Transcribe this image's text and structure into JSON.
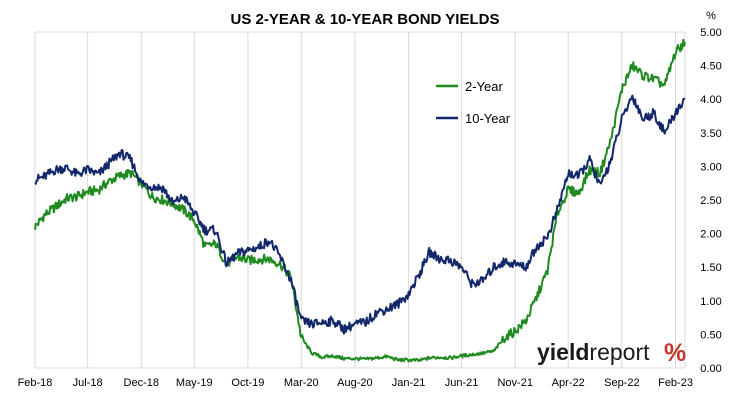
{
  "chart_data": {
    "type": "line",
    "title": "US 2-YEAR & 10-YEAR BOND YIELDS",
    "y_unit": "%",
    "ylim": [
      0,
      5
    ],
    "y_ticks": [
      "0.00",
      "0.50",
      "1.00",
      "1.50",
      "2.00",
      "2.50",
      "3.00",
      "3.50",
      "4.00",
      "4.50",
      "5.00"
    ],
    "y_tick_values": [
      0,
      0.5,
      1,
      1.5,
      2,
      2.5,
      3,
      3.5,
      4,
      4.5,
      5
    ],
    "x_range": [
      "2018-02-01",
      "2023-02-28"
    ],
    "x_ticks": [
      {
        "label": "Feb-18",
        "date": "2018-02-01"
      },
      {
        "label": "Jul-18",
        "date": "2018-07-01"
      },
      {
        "label": "Dec-18",
        "date": "2018-12-01"
      },
      {
        "label": "May-19",
        "date": "2019-05-01"
      },
      {
        "label": "Oct-19",
        "date": "2019-10-01"
      },
      {
        "label": "Mar-20",
        "date": "2020-03-01"
      },
      {
        "label": "Aug-20",
        "date": "2020-08-01"
      },
      {
        "label": "Jan-21",
        "date": "2021-01-01"
      },
      {
        "label": "Jun-21",
        "date": "2021-06-01"
      },
      {
        "label": "Nov-21",
        "date": "2021-11-01"
      },
      {
        "label": "Apr-22",
        "date": "2022-04-01"
      },
      {
        "label": "Sep-22",
        "date": "2022-09-01"
      },
      {
        "label": "Feb-23",
        "date": "2023-02-01"
      }
    ],
    "grid": "vertical",
    "legend": "upper-right inside plot",
    "series": [
      {
        "name": "2-Year",
        "color": "#1f8a1f",
        "points": [
          [
            "2018-02-01",
            2.1
          ],
          [
            "2018-03-01",
            2.28
          ],
          [
            "2018-04-01",
            2.4
          ],
          [
            "2018-05-01",
            2.52
          ],
          [
            "2018-06-01",
            2.55
          ],
          [
            "2018-07-01",
            2.62
          ],
          [
            "2018-08-01",
            2.65
          ],
          [
            "2018-09-01",
            2.78
          ],
          [
            "2018-10-01",
            2.86
          ],
          [
            "2018-11-01",
            2.9
          ],
          [
            "2018-12-01",
            2.75
          ],
          [
            "2019-01-01",
            2.55
          ],
          [
            "2019-02-01",
            2.5
          ],
          [
            "2019-03-01",
            2.45
          ],
          [
            "2019-04-01",
            2.35
          ],
          [
            "2019-05-01",
            2.2
          ],
          [
            "2019-06-01",
            1.8
          ],
          [
            "2019-07-01",
            1.85
          ],
          [
            "2019-08-01",
            1.55
          ],
          [
            "2019-09-01",
            1.65
          ],
          [
            "2019-10-01",
            1.6
          ],
          [
            "2019-11-01",
            1.62
          ],
          [
            "2019-12-01",
            1.62
          ],
          [
            "2020-01-01",
            1.55
          ],
          [
            "2020-02-01",
            1.35
          ],
          [
            "2020-03-01",
            0.45
          ],
          [
            "2020-04-01",
            0.22
          ],
          [
            "2020-05-01",
            0.16
          ],
          [
            "2020-06-01",
            0.18
          ],
          [
            "2020-07-01",
            0.14
          ],
          [
            "2020-08-01",
            0.14
          ],
          [
            "2020-09-01",
            0.13
          ],
          [
            "2020-10-01",
            0.15
          ],
          [
            "2020-11-01",
            0.17
          ],
          [
            "2020-12-01",
            0.12
          ],
          [
            "2021-01-01",
            0.12
          ],
          [
            "2021-02-01",
            0.11
          ],
          [
            "2021-03-01",
            0.15
          ],
          [
            "2021-04-01",
            0.16
          ],
          [
            "2021-05-01",
            0.15
          ],
          [
            "2021-06-01",
            0.18
          ],
          [
            "2021-07-01",
            0.2
          ],
          [
            "2021-08-01",
            0.22
          ],
          [
            "2021-09-01",
            0.25
          ],
          [
            "2021-10-01",
            0.45
          ],
          [
            "2021-11-01",
            0.55
          ],
          [
            "2021-12-01",
            0.7
          ],
          [
            "2022-01-01",
            1.05
          ],
          [
            "2022-02-01",
            1.45
          ],
          [
            "2022-03-01",
            2.3
          ],
          [
            "2022-04-01",
            2.65
          ],
          [
            "2022-05-01",
            2.6
          ],
          [
            "2022-06-01",
            2.95
          ],
          [
            "2022-07-01",
            2.9
          ],
          [
            "2022-08-01",
            3.4
          ],
          [
            "2022-09-01",
            4.15
          ],
          [
            "2022-10-01",
            4.5
          ],
          [
            "2022-11-01",
            4.35
          ],
          [
            "2022-12-01",
            4.3
          ],
          [
            "2023-01-01",
            4.2
          ],
          [
            "2023-02-01",
            4.7
          ],
          [
            "2023-02-28",
            4.85
          ]
        ]
      },
      {
        "name": "10-Year",
        "color": "#13286b",
        "points": [
          [
            "2018-02-01",
            2.8
          ],
          [
            "2018-03-01",
            2.85
          ],
          [
            "2018-04-01",
            2.95
          ],
          [
            "2018-05-01",
            2.98
          ],
          [
            "2018-06-01",
            2.88
          ],
          [
            "2018-07-01",
            2.95
          ],
          [
            "2018-08-01",
            2.88
          ],
          [
            "2018-09-01",
            3.05
          ],
          [
            "2018-10-01",
            3.2
          ],
          [
            "2018-11-01",
            3.1
          ],
          [
            "2018-12-01",
            2.75
          ],
          [
            "2019-01-01",
            2.7
          ],
          [
            "2019-02-01",
            2.68
          ],
          [
            "2019-03-01",
            2.45
          ],
          [
            "2019-04-01",
            2.55
          ],
          [
            "2019-05-01",
            2.3
          ],
          [
            "2019-06-01",
            2.05
          ],
          [
            "2019-07-01",
            2.05
          ],
          [
            "2019-08-01",
            1.55
          ],
          [
            "2019-09-01",
            1.7
          ],
          [
            "2019-10-01",
            1.75
          ],
          [
            "2019-11-01",
            1.8
          ],
          [
            "2019-12-01",
            1.9
          ],
          [
            "2020-01-01",
            1.65
          ],
          [
            "2020-02-01",
            1.3
          ],
          [
            "2020-03-01",
            0.7
          ],
          [
            "2020-04-01",
            0.65
          ],
          [
            "2020-05-01",
            0.68
          ],
          [
            "2020-06-01",
            0.7
          ],
          [
            "2020-07-01",
            0.58
          ],
          [
            "2020-08-01",
            0.65
          ],
          [
            "2020-09-01",
            0.68
          ],
          [
            "2020-10-01",
            0.82
          ],
          [
            "2020-11-01",
            0.88
          ],
          [
            "2020-12-01",
            0.95
          ],
          [
            "2021-01-01",
            1.1
          ],
          [
            "2021-02-01",
            1.4
          ],
          [
            "2021-03-01",
            1.72
          ],
          [
            "2021-04-01",
            1.62
          ],
          [
            "2021-05-01",
            1.6
          ],
          [
            "2021-06-01",
            1.5
          ],
          [
            "2021-07-01",
            1.25
          ],
          [
            "2021-08-01",
            1.3
          ],
          [
            "2021-09-01",
            1.5
          ],
          [
            "2021-10-01",
            1.58
          ],
          [
            "2021-11-01",
            1.55
          ],
          [
            "2021-12-01",
            1.5
          ],
          [
            "2022-01-01",
            1.8
          ],
          [
            "2022-02-01",
            1.95
          ],
          [
            "2022-03-01",
            2.35
          ],
          [
            "2022-04-01",
            2.9
          ],
          [
            "2022-05-01",
            2.85
          ],
          [
            "2022-06-01",
            3.1
          ],
          [
            "2022-07-01",
            2.7
          ],
          [
            "2022-08-01",
            3.1
          ],
          [
            "2022-09-01",
            3.7
          ],
          [
            "2022-10-01",
            4.05
          ],
          [
            "2022-11-01",
            3.7
          ],
          [
            "2022-12-01",
            3.8
          ],
          [
            "2023-01-01",
            3.5
          ],
          [
            "2023-02-01",
            3.8
          ],
          [
            "2023-02-28",
            4.0
          ]
        ]
      }
    ]
  },
  "branding": {
    "logo_part_a": "yield",
    "logo_part_b": "report",
    "logo_symbol": "%"
  }
}
